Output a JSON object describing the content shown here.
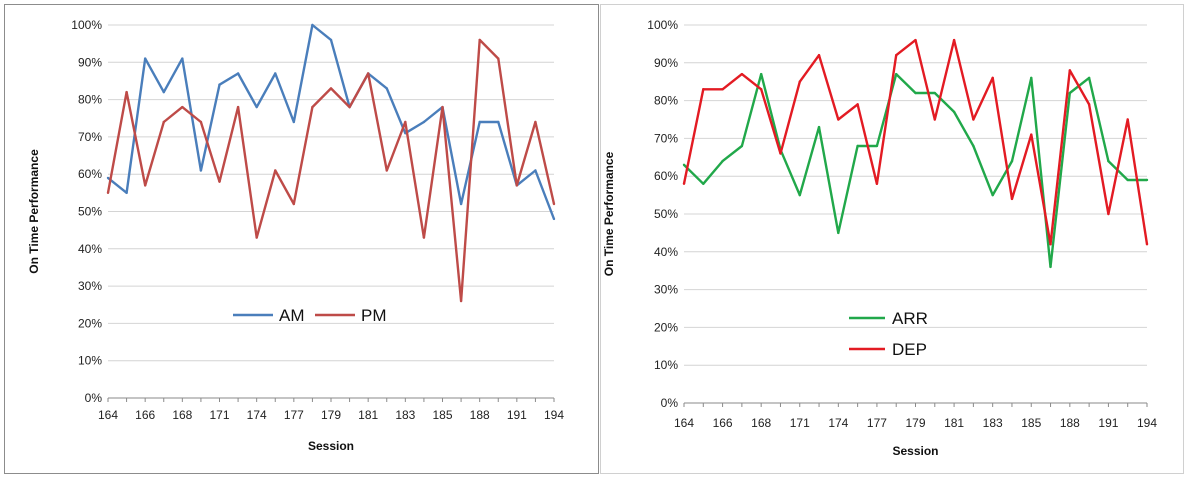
{
  "chart_data": [
    {
      "type": "line",
      "xlabel": "Session",
      "ylabel": "On Time Performance",
      "ylim": [
        0,
        100
      ],
      "y_ticks": [
        "0%",
        "10%",
        "20%",
        "30%",
        "40%",
        "50%",
        "60%",
        "70%",
        "80%",
        "90%",
        "100%"
      ],
      "x_tick_labels": [
        "164",
        "166",
        "168",
        "171",
        "174",
        "177",
        "179",
        "181",
        "183",
        "185",
        "188",
        "191",
        "194"
      ],
      "x_tick_every": 2,
      "x_count": 25,
      "grid": true,
      "legend_position": "lower-center-horizontal",
      "series": [
        {
          "name": "AM",
          "color": "#4a7ebb",
          "values": [
            59,
            55,
            91,
            82,
            91,
            61,
            84,
            87,
            78,
            87,
            74,
            100,
            96,
            78,
            87,
            83,
            71,
            74,
            78,
            52,
            74,
            74,
            57,
            61,
            48
          ]
        },
        {
          "name": "PM",
          "color": "#be4b48",
          "values": [
            55,
            82,
            57,
            74,
            78,
            74,
            58,
            78,
            43,
            61,
            52,
            78,
            83,
            78,
            87,
            61,
            74,
            43,
            78,
            26,
            96,
            91,
            57,
            74,
            52
          ]
        }
      ]
    },
    {
      "type": "line",
      "xlabel": "Session",
      "ylabel": "On Time Performance",
      "ylim": [
        0,
        100
      ],
      "y_ticks": [
        "0%",
        "10%",
        "20%",
        "30%",
        "40%",
        "50%",
        "60%",
        "70%",
        "80%",
        "90%",
        "100%"
      ],
      "x_tick_labels": [
        "164",
        "166",
        "168",
        "171",
        "174",
        "177",
        "179",
        "181",
        "183",
        "185",
        "188",
        "191",
        "194"
      ],
      "x_tick_every": 2,
      "x_count": 25,
      "grid": true,
      "legend_position": "lower-center-vertical",
      "series": [
        {
          "name": "ARR",
          "color": "#21a84a",
          "values": [
            63,
            58,
            64,
            68,
            87,
            67,
            55,
            73,
            45,
            68,
            68,
            87,
            82,
            82,
            77,
            68,
            55,
            64,
            86,
            36,
            82,
            86,
            64,
            59,
            59
          ]
        },
        {
          "name": "DEP",
          "color": "#e31b23",
          "values": [
            58,
            83,
            83,
            87,
            83,
            66,
            85,
            92,
            75,
            79,
            58,
            92,
            96,
            75,
            96,
            75,
            86,
            54,
            71,
            42,
            88,
            79,
            50,
            75,
            42
          ]
        }
      ]
    }
  ]
}
